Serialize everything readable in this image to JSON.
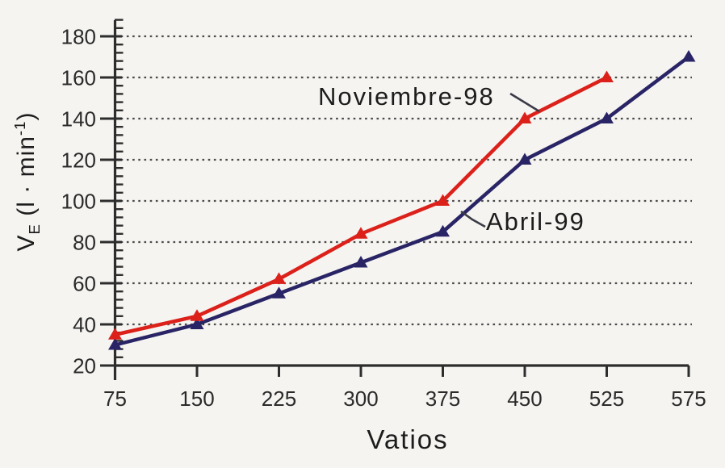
{
  "figure": {
    "background": "#f5f4f1",
    "text_color": "#1c1c1c"
  },
  "chart_data": {
    "type": "line",
    "title": "",
    "xlabel": "Vatios",
    "ylabel": "VE (l · min-1)",
    "ylabel_parts": {
      "symbol": "V",
      "subscript": "E",
      "unit_open": " (l · min",
      "unit_exponent": "-1",
      "unit_close": ")"
    },
    "x_categories": [
      75,
      150,
      225,
      300,
      375,
      450,
      525,
      575
    ],
    "y_ticks": [
      20,
      40,
      60,
      80,
      100,
      120,
      140,
      160,
      180
    ],
    "ylim": [
      20,
      188
    ],
    "grid": {
      "horizontal_dashed_at": [
        40,
        60,
        80,
        100,
        120,
        140,
        160,
        180
      ],
      "color": "#4a4a4a"
    },
    "axis_color": "#2d2d2d",
    "tick_label_color": "#2a2a2a",
    "legend_position": "inline-annotations",
    "series": [
      {
        "name": "Noviembre-98",
        "color": "#dc201a",
        "marker": "triangle-up",
        "values": [
          35,
          44,
          62,
          84,
          100,
          140,
          160,
          null
        ]
      },
      {
        "name": "Abril-99",
        "color": "#292465",
        "marker": "triangle-up",
        "values": [
          30,
          40,
          55,
          70,
          85,
          120,
          140,
          170
        ]
      }
    ],
    "annotations": [
      {
        "text": "Noviembre-98",
        "points_to_series": "Noviembre-98"
      },
      {
        "text": "Abril-99",
        "points_to_series": "Abril-99"
      }
    ]
  }
}
